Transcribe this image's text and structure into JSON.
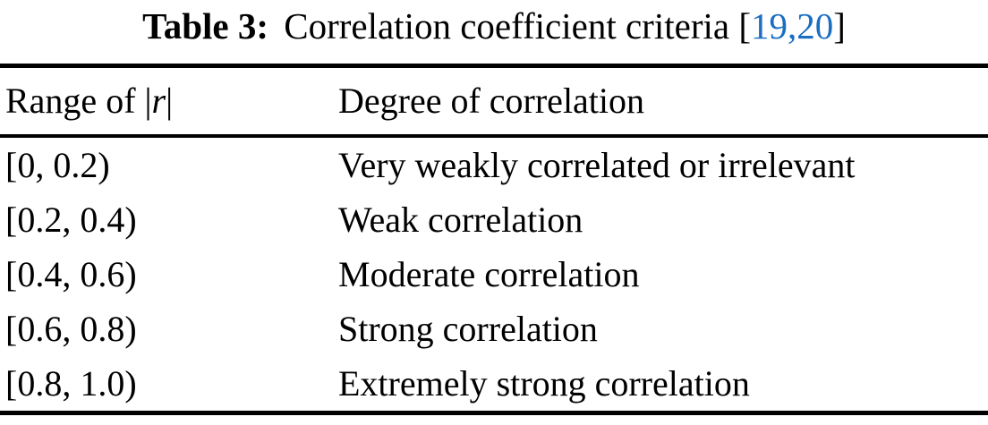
{
  "colors": {
    "text": "#000000",
    "citation_link": "#1b6ec0",
    "rule": "#000000",
    "background": "#ffffff"
  },
  "caption": {
    "label": "Table 3:",
    "title": "Correlation coefficient criteria",
    "citation_open": "[",
    "citation_refs": [
      "19",
      "20"
    ],
    "citation_separator": ",",
    "citation_close": "]"
  },
  "table": {
    "header": {
      "range_prefix": "Range of ",
      "abs_bar": "|",
      "variable": "r",
      "degree": "Degree of correlation"
    },
    "rows": [
      {
        "range": "[0, 0.2)",
        "degree": "Very weakly correlated or irrelevant"
      },
      {
        "range": "[0.2, 0.4)",
        "degree": "Weak correlation"
      },
      {
        "range": "[0.4, 0.6)",
        "degree": "Moderate correlation"
      },
      {
        "range": "[0.6, 0.8)",
        "degree": "Strong correlation"
      },
      {
        "range": "[0.8, 1.0)",
        "degree": "Extremely strong correlation"
      }
    ]
  }
}
